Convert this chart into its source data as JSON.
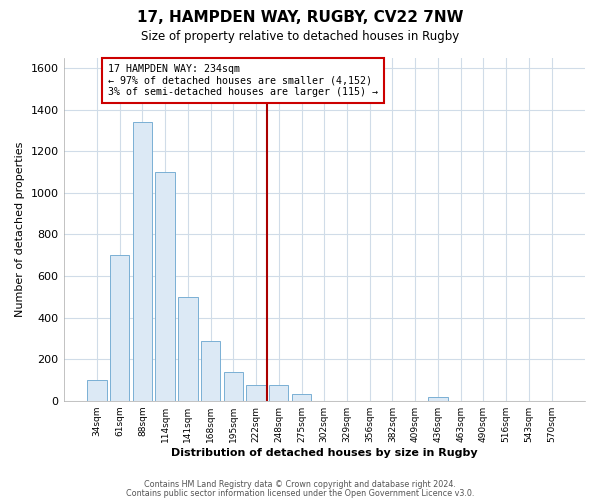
{
  "title": "17, HAMPDEN WAY, RUGBY, CV22 7NW",
  "subtitle": "Size of property relative to detached houses in Rugby",
  "xlabel": "Distribution of detached houses by size in Rugby",
  "ylabel": "Number of detached properties",
  "bar_labels": [
    "34sqm",
    "61sqm",
    "88sqm",
    "114sqm",
    "141sqm",
    "168sqm",
    "195sqm",
    "222sqm",
    "248sqm",
    "275sqm",
    "302sqm",
    "329sqm",
    "356sqm",
    "382sqm",
    "409sqm",
    "436sqm",
    "463sqm",
    "490sqm",
    "516sqm",
    "543sqm",
    "570sqm"
  ],
  "bar_values": [
    100,
    700,
    1340,
    1100,
    500,
    285,
    140,
    75,
    75,
    30,
    0,
    0,
    0,
    0,
    0,
    18,
    0,
    0,
    0,
    0,
    0
  ],
  "bar_color": "#dce9f5",
  "bar_edge_color": "#7aafd4",
  "vline_x": 8.0,
  "vline_color": "#aa0000",
  "annotation_title": "17 HAMPDEN WAY: 234sqm",
  "annotation_line1": "← 97% of detached houses are smaller (4,152)",
  "annotation_line2": "3% of semi-detached houses are larger (115) →",
  "annotation_box_facecolor": "#ffffff",
  "annotation_box_edgecolor": "#cc0000",
  "ylim": [
    0,
    1650
  ],
  "yticks": [
    0,
    200,
    400,
    600,
    800,
    1000,
    1200,
    1400,
    1600
  ],
  "footer1": "Contains HM Land Registry data © Crown copyright and database right 2024.",
  "footer2": "Contains public sector information licensed under the Open Government Licence v3.0.",
  "fig_facecolor": "#ffffff",
  "axes_facecolor": "#ffffff",
  "grid_color": "#d0dce8",
  "spine_color": "#aaaaaa"
}
